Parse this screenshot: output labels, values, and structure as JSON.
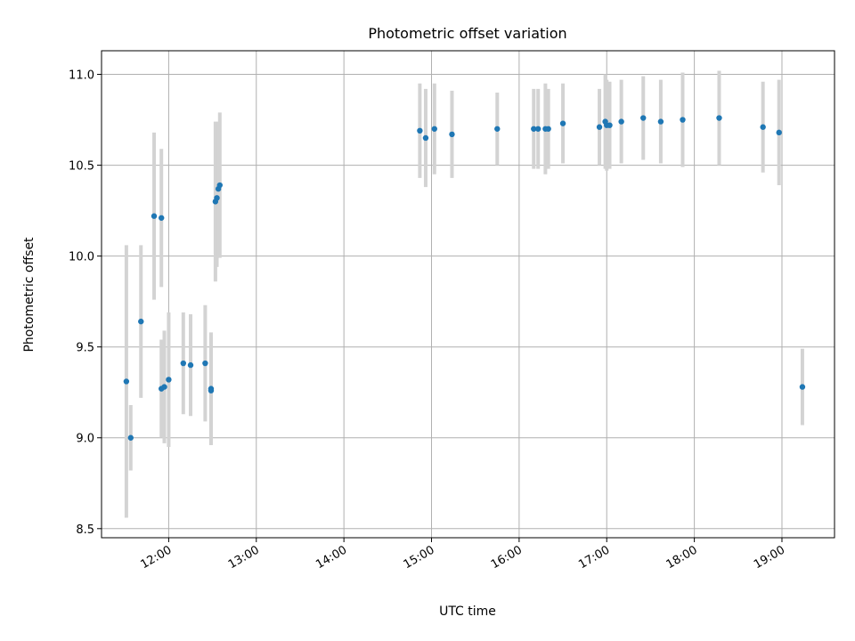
{
  "chart_data": {
    "type": "scatter",
    "title": "Photometric offset variation",
    "xlabel": "UTC time",
    "ylabel": "Photometric offset",
    "xlim": [
      "11:14",
      "19:36"
    ],
    "ylim": [
      8.45,
      11.13
    ],
    "grid": true,
    "x_ticks": [
      "12:00",
      "13:00",
      "14:00",
      "15:00",
      "16:00",
      "17:00",
      "18:00",
      "19:00"
    ],
    "y_ticks": [
      8.5,
      9.0,
      9.5,
      10.0,
      10.5,
      11.0
    ],
    "y_tick_labels": [
      "8.5",
      "9.0",
      "9.5",
      "10.0",
      "10.5",
      "11.0"
    ],
    "colors": {
      "point": "#1f77b4",
      "errorbar": "#d3d3d3",
      "grid": "#b0b0b0"
    },
    "points": [
      {
        "x": "11:31",
        "y": 9.31,
        "err": 0.75
      },
      {
        "x": "11:34",
        "y": 9.0,
        "err": 0.18
      },
      {
        "x": "11:41",
        "y": 9.64,
        "err": 0.42
      },
      {
        "x": "11:50",
        "y": 10.22,
        "err": 0.46
      },
      {
        "x": "11:55",
        "y": 10.21,
        "err": 0.38
      },
      {
        "x": "11:55",
        "y": 9.27,
        "err": 0.27
      },
      {
        "x": "11:57",
        "y": 9.28,
        "err": 0.31
      },
      {
        "x": "12:00",
        "y": 9.32,
        "err": 0.37
      },
      {
        "x": "12:10",
        "y": 9.41,
        "err": 0.28
      },
      {
        "x": "12:15",
        "y": 9.4,
        "err": 0.28
      },
      {
        "x": "12:25",
        "y": 9.41,
        "err": 0.32
      },
      {
        "x": "12:29",
        "y": 9.27,
        "err": 0.31
      },
      {
        "x": "12:29",
        "y": 9.26,
        "err": 0.3
      },
      {
        "x": "12:32",
        "y": 10.3,
        "err": 0.44
      },
      {
        "x": "12:33",
        "y": 10.32,
        "err": 0.38
      },
      {
        "x": "12:34",
        "y": 10.37,
        "err": 0.37
      },
      {
        "x": "12:35",
        "y": 10.39,
        "err": 0.4
      },
      {
        "x": "14:52",
        "y": 10.69,
        "err": 0.26
      },
      {
        "x": "14:56",
        "y": 10.65,
        "err": 0.27
      },
      {
        "x": "15:02",
        "y": 10.7,
        "err": 0.25
      },
      {
        "x": "15:14",
        "y": 10.67,
        "err": 0.24
      },
      {
        "x": "15:45",
        "y": 10.7,
        "err": 0.2
      },
      {
        "x": "16:10",
        "y": 10.7,
        "err": 0.22
      },
      {
        "x": "16:13",
        "y": 10.7,
        "err": 0.22
      },
      {
        "x": "16:18",
        "y": 10.7,
        "err": 0.25
      },
      {
        "x": "16:20",
        "y": 10.7,
        "err": 0.22
      },
      {
        "x": "16:30",
        "y": 10.73,
        "err": 0.22
      },
      {
        "x": "16:55",
        "y": 10.71,
        "err": 0.21
      },
      {
        "x": "16:59",
        "y": 10.74,
        "err": 0.26
      },
      {
        "x": "17:00",
        "y": 10.72,
        "err": 0.25
      },
      {
        "x": "17:02",
        "y": 10.72,
        "err": 0.24
      },
      {
        "x": "17:10",
        "y": 10.74,
        "err": 0.23
      },
      {
        "x": "17:25",
        "y": 10.76,
        "err": 0.23
      },
      {
        "x": "17:37",
        "y": 10.74,
        "err": 0.23
      },
      {
        "x": "17:52",
        "y": 10.75,
        "err": 0.26
      },
      {
        "x": "18:17",
        "y": 10.76,
        "err": 0.26
      },
      {
        "x": "18:47",
        "y": 10.71,
        "err": 0.25
      },
      {
        "x": "18:58",
        "y": 10.68,
        "err": 0.29
      },
      {
        "x": "19:14",
        "y": 9.28,
        "err": 0.21
      }
    ]
  }
}
